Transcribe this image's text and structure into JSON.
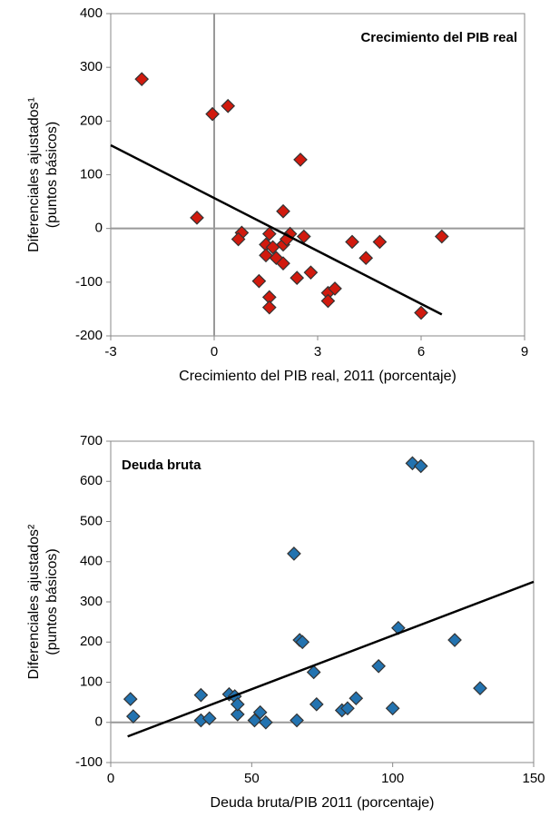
{
  "chart_data": [
    {
      "type": "scatter",
      "title": "Crecimiento del PIB real",
      "title_corner": "top-right",
      "x_label": "Crecimiento del PIB real, 2011 (porcentaje)",
      "y_label": [
        "Diferenciales ajustados¹",
        "(puntos básicos)"
      ],
      "xlim": [
        -3,
        9
      ],
      "xticks": [
        -3,
        0,
        3,
        6,
        9
      ],
      "ylim": [
        -200,
        400
      ],
      "yticks": [
        -200,
        -100,
        0,
        100,
        200,
        300,
        400
      ],
      "zero_lines": {
        "x": true,
        "y": true
      },
      "color": "#d11a0e",
      "x": [
        -2.1,
        -0.05,
        0.4,
        -0.5,
        2.5,
        2.0,
        1.6,
        2.2,
        2.6,
        0.8,
        0.7,
        1.5,
        2.0,
        1.7,
        1.5,
        1.8,
        2.0,
        1.3,
        2.8,
        2.4,
        1.6,
        1.6,
        3.3,
        3.5,
        3.3,
        4.0,
        4.8,
        4.4,
        6.6,
        6.0,
        2.1
      ],
      "values": [
        278,
        213,
        228,
        20,
        128,
        32,
        -10,
        -10,
        -15,
        -8,
        -20,
        -30,
        -30,
        -35,
        -50,
        -55,
        -65,
        -98,
        -82,
        -92,
        -128,
        -147,
        -120,
        -112,
        -135,
        -25,
        -25,
        -55,
        -15,
        -157,
        -20
      ],
      "trend": {
        "x": [
          -3,
          6.6
        ],
        "values": [
          155,
          -160
        ]
      }
    },
    {
      "type": "scatter",
      "title": "Deuda bruta",
      "title_corner": "top-left",
      "x_label": "Deuda bruta/PIB 2011 (porcentaje)",
      "y_label": [
        "Diferenciales ajustados²",
        "(puntos básicos)"
      ],
      "xlim": [
        0,
        150
      ],
      "xticks": [
        0,
        50,
        100,
        150
      ],
      "ylim": [
        -100,
        700
      ],
      "yticks": [
        -100,
        0,
        100,
        200,
        300,
        400,
        500,
        600,
        700
      ],
      "zero_lines": {
        "x": false,
        "y": true
      },
      "color": "#2373b0",
      "x": [
        7,
        8,
        32,
        32,
        35,
        42,
        44,
        45,
        45,
        51,
        53,
        55,
        66,
        65,
        67,
        68,
        72,
        73,
        82,
        84,
        87,
        95,
        100,
        102,
        107,
        110,
        122,
        131
      ],
      "values": [
        58,
        15,
        68,
        5,
        10,
        70,
        65,
        20,
        45,
        5,
        25,
        0,
        5,
        420,
        205,
        200,
        125,
        45,
        30,
        35,
        60,
        140,
        35,
        235,
        645,
        638,
        205,
        85
      ],
      "trend": {
        "x": [
          6,
          150
        ],
        "values": [
          -35,
          350
        ]
      }
    }
  ]
}
